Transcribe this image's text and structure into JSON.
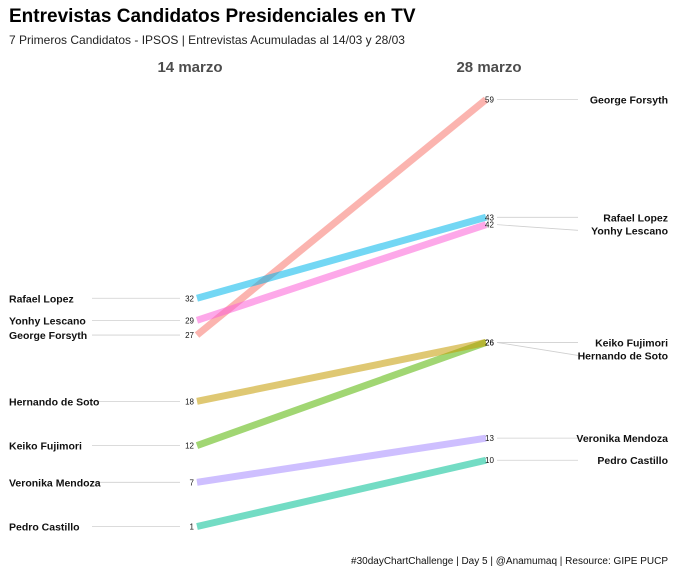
{
  "title": "Entrevistas Candidatos Presidenciales en TV",
  "subtitle": "7 Primeros Candidatos - IPSOS | Entrevistas Acumuladas al 14/03 y 28/03",
  "caption": "#30dayChartChallenge | Day 5 | @Anamumaq | Resource: GIPE PUCP",
  "chart_data": {
    "type": "line",
    "subtype": "slope",
    "x": [
      "14 marzo",
      "28 marzo"
    ],
    "series": [
      {
        "name": "George Forsyth",
        "values": [
          27,
          59
        ],
        "color": "#F8766D"
      },
      {
        "name": "Rafael Lopez",
        "values": [
          32,
          43
        ],
        "color": "#00B6EB"
      },
      {
        "name": "Yonhy Lescano",
        "values": [
          29,
          42
        ],
        "color": "#FB61D7"
      },
      {
        "name": "Keiko Fujimori",
        "values": [
          12,
          26
        ],
        "color": "#53B400"
      },
      {
        "name": "Hernando de Soto",
        "values": [
          18,
          26
        ],
        "color": "#C49A00"
      },
      {
        "name": "Veronika Mendoza",
        "values": [
          7,
          13
        ],
        "color": "#A58AFF"
      },
      {
        "name": "Pedro Castillo",
        "values": [
          1,
          10
        ],
        "color": "#00C094"
      }
    ],
    "grid": false,
    "legend": "none"
  }
}
